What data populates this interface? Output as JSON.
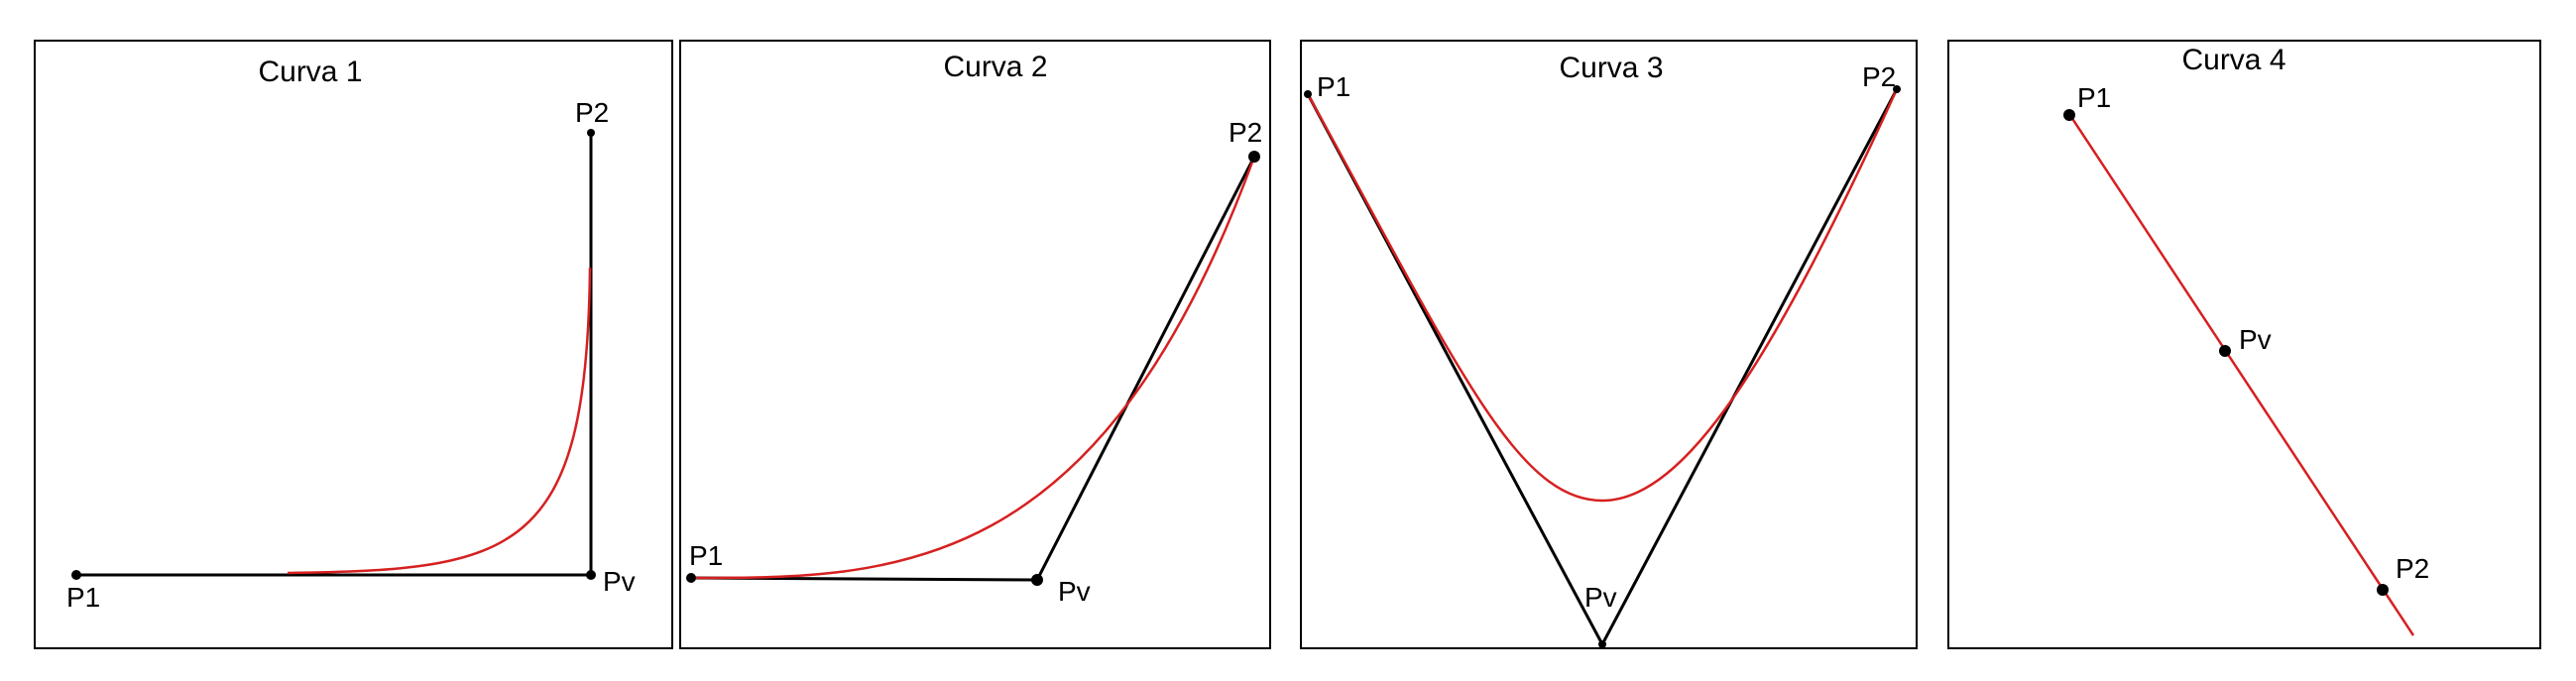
{
  "colors": {
    "frame": "#000000",
    "control_polygon": "#000000",
    "curve": "#d62020"
  },
  "panels": [
    {
      "title": "Curva 1",
      "labels": {
        "p1": "P1",
        "pv": "Pv",
        "p2": "P2"
      }
    },
    {
      "title": "Curva 2",
      "labels": {
        "p1": "P1",
        "pv": "Pv",
        "p2": "P2"
      }
    },
    {
      "title": "Curva 3",
      "labels": {
        "p1": "P1",
        "pv": "Pv",
        "p2": "P2"
      }
    },
    {
      "title": "Curva 4",
      "labels": {
        "p1": "P1",
        "pv": "Pv",
        "p2": "P2"
      }
    }
  ]
}
